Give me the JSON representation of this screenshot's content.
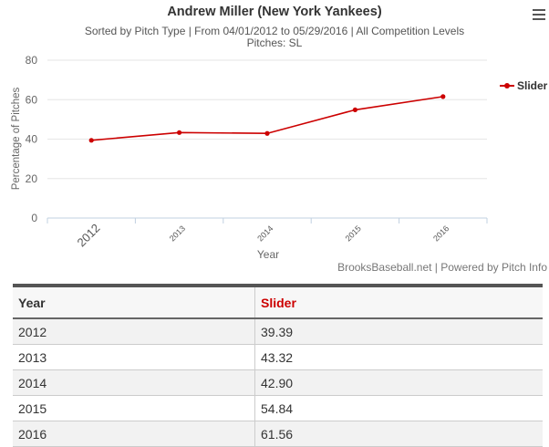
{
  "chart": {
    "title": "Andrew Miller (New York Yankees)",
    "subtitle_line1": "Sorted by Pitch Type | From 04/01/2012 to 05/29/2016 | All Competition Levels",
    "subtitle_line2": "Pitches: SL",
    "credits": "BrooksBaseball.net | Powered by Pitch Info"
  },
  "chart_data": {
    "type": "line",
    "title": "Andrew Miller (New York Yankees)",
    "xlabel": "Year",
    "ylabel": "Percentage of Pitches",
    "categories": [
      "2012",
      "2013",
      "2014",
      "2015",
      "2016"
    ],
    "series": [
      {
        "name": "Slider",
        "color": "#cc0000",
        "values": [
          39.39,
          43.32,
          42.9,
          54.84,
          61.56
        ]
      }
    ],
    "ylim": [
      0,
      80
    ],
    "yticks": [
      0,
      20,
      40,
      60,
      80
    ],
    "grid": true,
    "legend": "right"
  },
  "table": {
    "headers": [
      "Year",
      "Slider"
    ],
    "rows": [
      [
        "2012",
        "39.39"
      ],
      [
        "2013",
        "43.32"
      ],
      [
        "2014",
        "42.90"
      ],
      [
        "2015",
        "54.84"
      ],
      [
        "2016",
        "61.56"
      ]
    ]
  }
}
